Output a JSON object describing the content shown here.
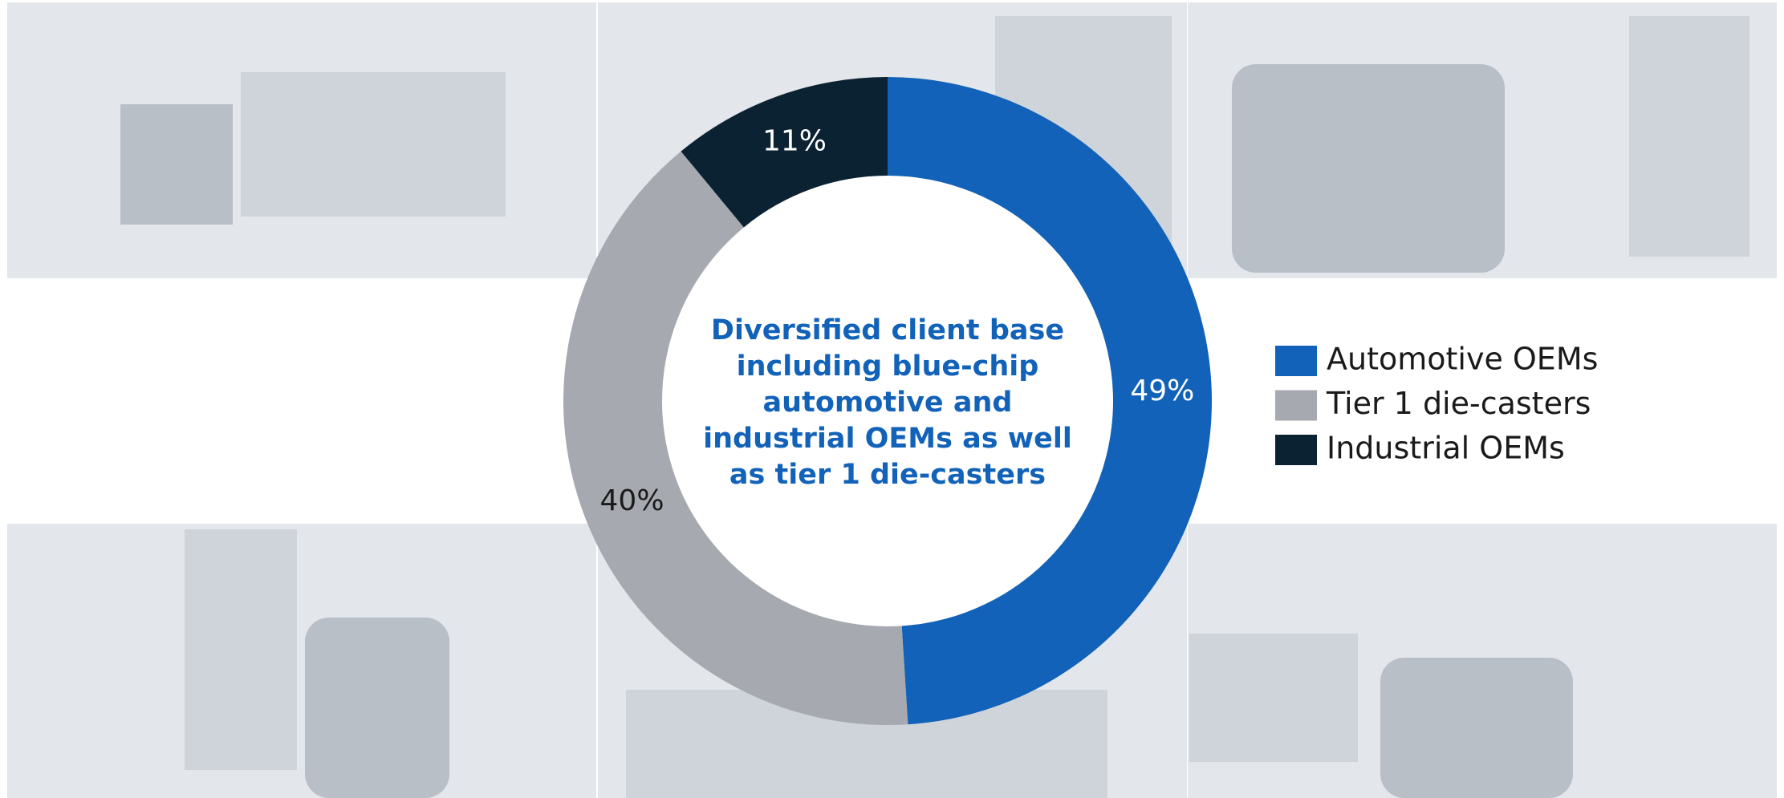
{
  "chart_data": {
    "type": "donut",
    "title_lines": [
      "Diversified client base",
      "including blue-chip",
      "automotive and",
      "industrial OEMs as well",
      "as tier 1 die-casters"
    ],
    "categories": [
      "Automotive OEMs",
      "Tier 1 die-casters",
      "Industrial OEMs"
    ],
    "values": [
      49,
      40,
      11
    ],
    "value_labels": [
      "49%",
      "40%",
      "11%"
    ],
    "colors": [
      "#1162b8",
      "#a7a9b0",
      "#0b2233"
    ],
    "label_colors": [
      "#ffffff",
      "#1a1a1a",
      "#ffffff"
    ],
    "legend": "right"
  }
}
